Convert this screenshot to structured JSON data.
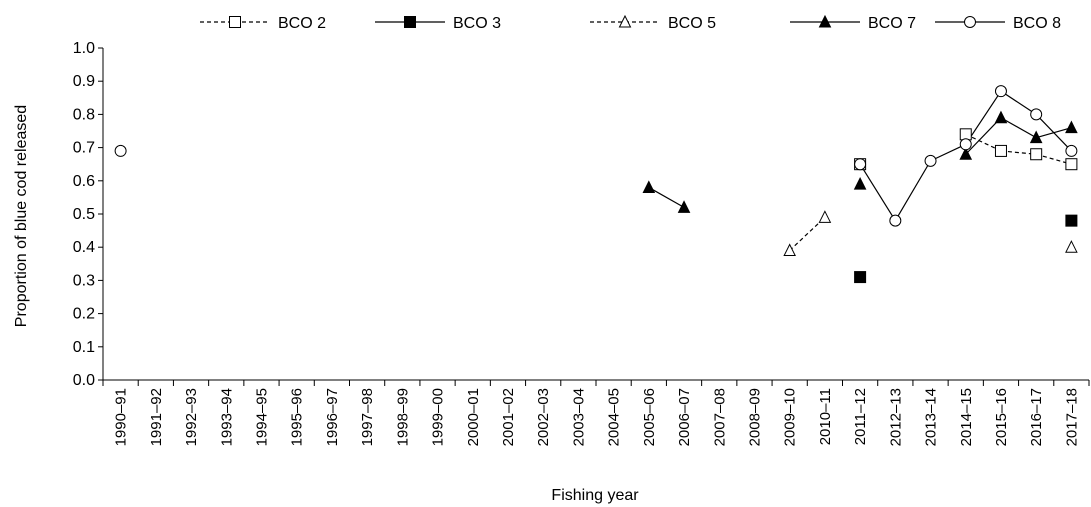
{
  "chart_data": {
    "type": "line",
    "title": "",
    "xlabel": "Fishing year",
    "ylabel": "Proportion of blue cod released",
    "ylim": [
      0,
      1.0
    ],
    "yticks": [
      "0.0",
      "0.1",
      "0.2",
      "0.3",
      "0.4",
      "0.5",
      "0.6",
      "0.7",
      "0.8",
      "0.9",
      "1.0"
    ],
    "grid": false,
    "legend_position": "top",
    "categories": [
      "1990–91",
      "1991–92",
      "1992–93",
      "1993–94",
      "1994–95",
      "1995–96",
      "1996–97",
      "1997–98",
      "1998–99",
      "1999–00",
      "2000–01",
      "2001–02",
      "2002–03",
      "2003–04",
      "2004–05",
      "2005–06",
      "2006–07",
      "2007–08",
      "2008–09",
      "2009–10",
      "2010–11",
      "2011–12",
      "2012–13",
      "2013–14",
      "2014–15",
      "2015–16",
      "2016–17",
      "2017–18"
    ],
    "series": [
      {
        "name": "BCO 2",
        "line": "dashed",
        "marker": "square",
        "filled": false,
        "color": "#000000",
        "values": [
          null,
          null,
          null,
          null,
          null,
          null,
          null,
          null,
          null,
          null,
          null,
          null,
          null,
          null,
          null,
          null,
          null,
          null,
          null,
          null,
          null,
          0.65,
          null,
          null,
          0.74,
          0.69,
          0.68,
          0.65
        ]
      },
      {
        "name": "BCO 3",
        "line": "solid",
        "marker": "square",
        "filled": true,
        "color": "#000000",
        "values": [
          null,
          null,
          null,
          null,
          null,
          null,
          null,
          null,
          null,
          null,
          null,
          null,
          null,
          null,
          null,
          null,
          null,
          null,
          null,
          null,
          null,
          0.31,
          null,
          null,
          null,
          null,
          null,
          0.48
        ]
      },
      {
        "name": "BCO 5",
        "line": "dashed",
        "marker": "triangle",
        "filled": false,
        "color": "#000000",
        "values": [
          null,
          null,
          null,
          null,
          null,
          null,
          null,
          null,
          null,
          null,
          null,
          null,
          null,
          null,
          null,
          null,
          null,
          null,
          null,
          0.39,
          0.49,
          null,
          null,
          null,
          null,
          null,
          null,
          0.4
        ]
      },
      {
        "name": "BCO 7",
        "line": "solid",
        "marker": "triangle",
        "filled": true,
        "color": "#000000",
        "values": [
          null,
          null,
          null,
          null,
          null,
          null,
          null,
          null,
          null,
          null,
          null,
          null,
          null,
          null,
          null,
          0.58,
          0.52,
          null,
          null,
          null,
          null,
          0.59,
          null,
          null,
          0.68,
          0.79,
          0.73,
          0.76
        ]
      },
      {
        "name": "BCO 8",
        "line": "solid",
        "marker": "circle",
        "filled": false,
        "color": "#000000",
        "values": [
          0.69,
          null,
          null,
          null,
          null,
          null,
          null,
          null,
          null,
          null,
          null,
          null,
          null,
          null,
          null,
          null,
          null,
          null,
          null,
          null,
          null,
          0.65,
          0.48,
          0.66,
          0.71,
          0.87,
          0.8,
          0.69
        ]
      }
    ]
  }
}
